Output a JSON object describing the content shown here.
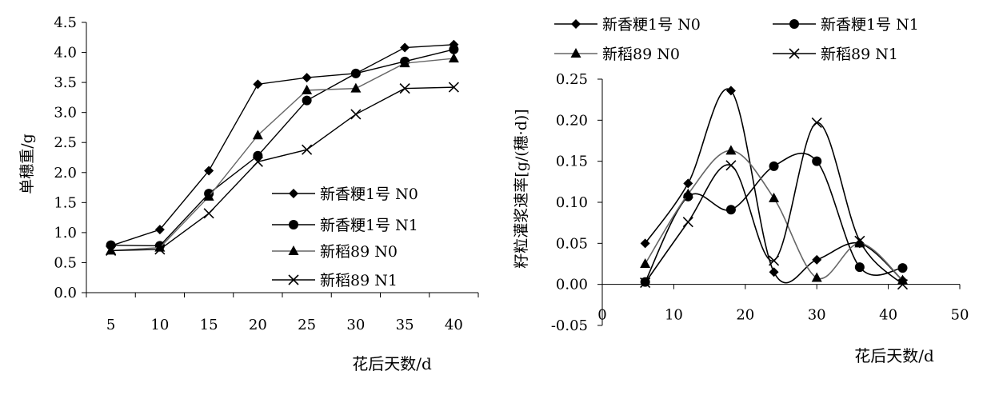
{
  "chart_data": [
    {
      "type": "line",
      "xlabel": "花后天数/d",
      "ylabel": "单穗重/g",
      "x": [
        5,
        10,
        15,
        20,
        25,
        30,
        35,
        40
      ],
      "xticks": [
        "5",
        "10",
        "15",
        "20",
        "25",
        "30",
        "35",
        "40"
      ],
      "ylim": [
        0,
        4.5
      ],
      "yticks": [
        "0.0",
        "0.5",
        "1.0",
        "1.5",
        "2.0",
        "2.5",
        "3.0",
        "3.5",
        "4.0",
        "4.5"
      ],
      "grid": false,
      "legend_position": "bottom-right",
      "series": [
        {
          "name": "新香粳1号 N0",
          "marker": "diamond",
          "values": [
            0.78,
            1.05,
            2.03,
            3.47,
            3.58,
            3.65,
            4.08,
            4.13
          ]
        },
        {
          "name": "新香粳1号 N1",
          "marker": "circle",
          "values": [
            0.79,
            0.78,
            1.65,
            2.28,
            3.2,
            3.65,
            3.85,
            4.05
          ]
        },
        {
          "name": "新稻89 N0",
          "marker": "triangle",
          "values": [
            0.7,
            0.75,
            1.6,
            2.62,
            3.37,
            3.4,
            3.82,
            3.9
          ]
        },
        {
          "name": "新稻89 N1",
          "marker": "x",
          "values": [
            0.7,
            0.72,
            1.32,
            2.18,
            2.38,
            2.97,
            3.4,
            3.42
          ]
        }
      ]
    },
    {
      "type": "line",
      "xlabel": "花后天数/d",
      "ylabel": "籽粒灌浆速率[g/(穗·d)]",
      "x": [
        6,
        12,
        18,
        24,
        30,
        36,
        42
      ],
      "xlim": [
        0,
        50
      ],
      "xticks": [
        "0",
        "10",
        "20",
        "30",
        "40",
        "50"
      ],
      "ylim": [
        -0.05,
        0.25
      ],
      "yticks": [
        "-0.05",
        "0.00",
        "0.05",
        "0.10",
        "0.15",
        "0.20",
        "0.25"
      ],
      "grid": false,
      "smoothed": true,
      "legend_position": "top",
      "series": [
        {
          "name": "新香粳1号 N0",
          "marker": "diamond",
          "values": [
            0.05,
            0.123,
            0.236,
            0.015,
            0.03,
            0.05,
            0.005
          ]
        },
        {
          "name": "新香粳1号 N1",
          "marker": "circle",
          "values": [
            0.003,
            0.107,
            0.091,
            0.144,
            0.15,
            0.021,
            0.02
          ]
        },
        {
          "name": "新稻89 N0",
          "marker": "triangle",
          "values": [
            0.025,
            0.11,
            0.163,
            0.105,
            0.008,
            0.05,
            0.005
          ]
        },
        {
          "name": "新稻89 N1",
          "marker": "x",
          "values": [
            0.002,
            0.076,
            0.145,
            0.029,
            0.197,
            0.053,
            0.0
          ]
        }
      ]
    }
  ]
}
